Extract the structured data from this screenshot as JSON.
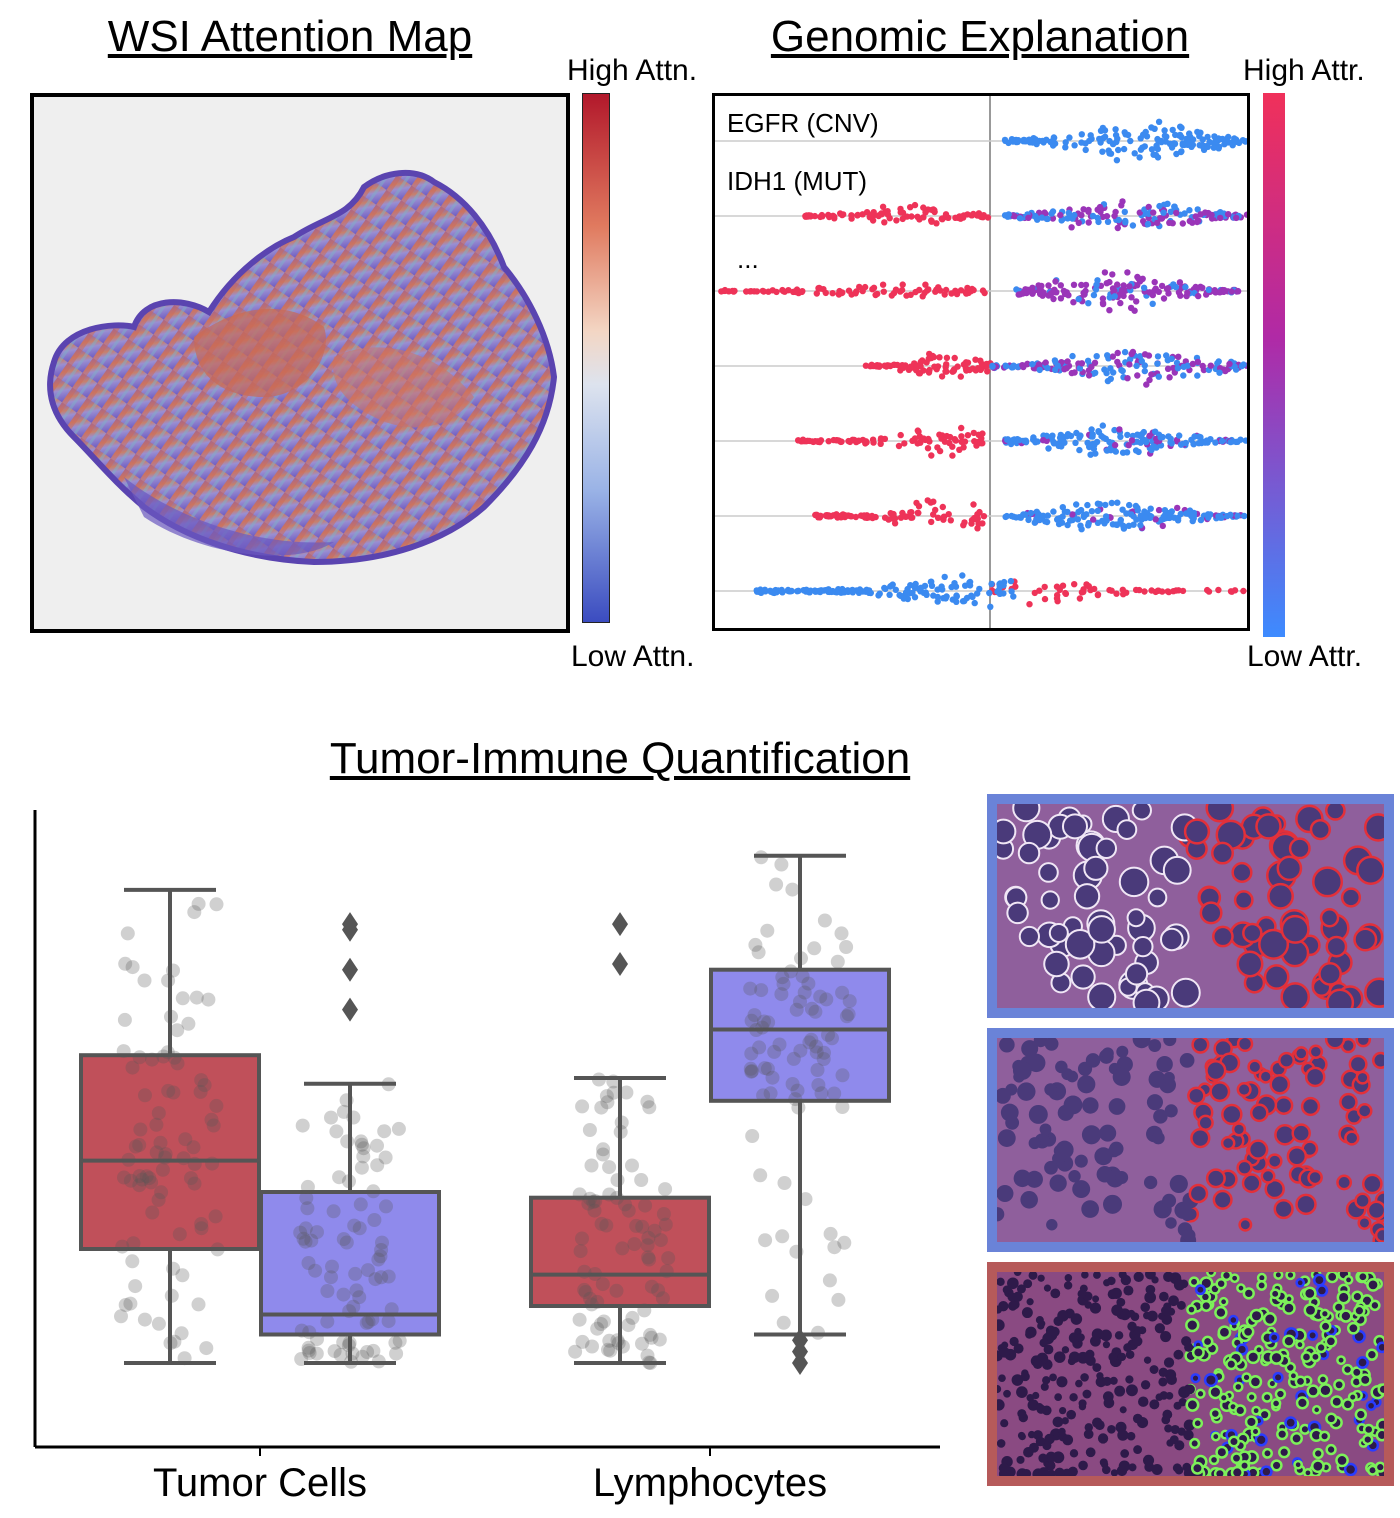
{
  "titles": {
    "wsi": "WSI Attention Map",
    "genomic": "Genomic Explanation",
    "quant": "Tumor-Immune Quantification"
  },
  "attention_colorbar": {
    "high": "High Attn.",
    "low": "Low Attn.",
    "colors": [
      "#b2182b",
      "#f3d6c4",
      "#3b4cc0"
    ]
  },
  "attribution_colorbar": {
    "high": "High Attr.",
    "low": "Low Attr.",
    "colors": [
      "#f0305a",
      "#b02aa6",
      "#3d8bff"
    ]
  },
  "shap_features": {
    "row1": "EGFR (CNV)",
    "row2": "IDH1 (MUT)",
    "ellipsis": "..."
  },
  "chart_data": [
    {
      "type": "scatter",
      "subtype": "beeswarm",
      "row_labels": [
        "EGFR (CNV)",
        "IDH1 (MUT)",
        "..."
      ],
      "rows": 7,
      "grid": true,
      "colorbar": {
        "high": "High Attr.",
        "low": "Low Attr."
      }
    },
    {
      "type": "box",
      "categories": [
        "Tumor Cells",
        "Lymphocytes"
      ],
      "ylim": [
        0,
        100
      ],
      "series": [
        {
          "color": "#c0505a",
          "boxes": [
            {
              "category": "Tumor Cells",
              "whisker_low": 10,
              "q1": 30,
              "median": 45.5,
              "q3": 64,
              "whisker_high": 93,
              "outliers": []
            },
            {
              "category": "Lymphocytes",
              "whisker_low": 10,
              "q1": 20,
              "median": 25.5,
              "q3": 39,
              "whisker_high": 60,
              "outliers": [
                80,
                87
              ]
            }
          ]
        },
        {
          "color": "#8f8aec",
          "boxes": [
            {
              "category": "Tumor Cells",
              "whisker_low": 10,
              "q1": 15,
              "median": 18.5,
              "q3": 40,
              "whisker_high": 59,
              "outliers": [
                72,
                79,
                86,
                87
              ]
            },
            {
              "category": "Lymphocytes",
              "whisker_low": 15,
              "q1": 56,
              "median": 68.5,
              "q3": 79,
              "whisker_high": 99,
              "outliers": [
                10,
                12,
                14
              ]
            }
          ]
        }
      ]
    }
  ],
  "tiles": [
    {
      "border": "#6a83d8"
    },
    {
      "border": "#6a83d8"
    },
    {
      "border": "#b65a5a"
    }
  ]
}
